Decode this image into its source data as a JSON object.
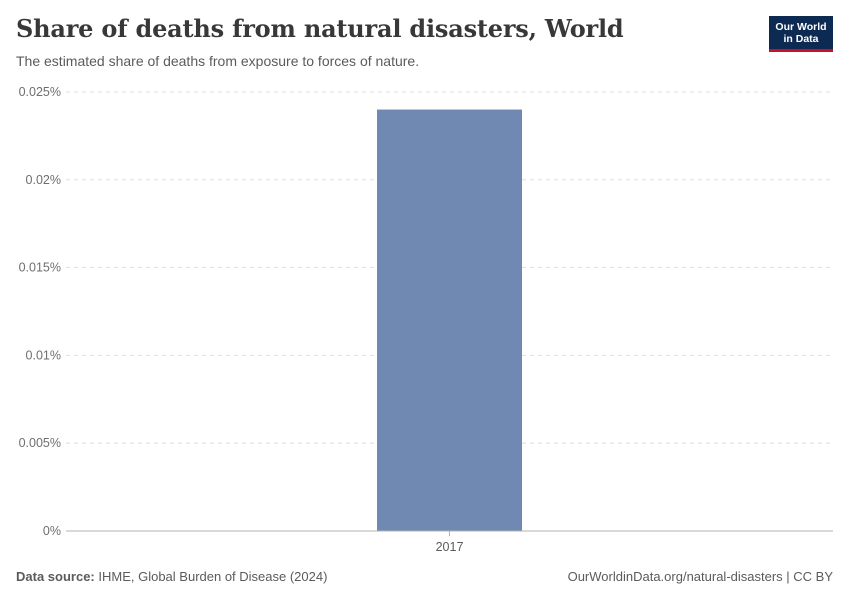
{
  "header": {
    "title": "Share of deaths from natural disasters, World",
    "subtitle": "The estimated share of deaths from exposure to forces of nature."
  },
  "logo": {
    "line1": "Our World",
    "line2": "in Data"
  },
  "chart_data": {
    "type": "bar",
    "title": "Share of deaths from natural disasters, World",
    "categories": [
      "2017"
    ],
    "values": [
      0.024
    ],
    "unit": "%",
    "ylim": [
      0,
      0.025
    ],
    "yticks": [
      0,
      0.005,
      0.01,
      0.015,
      0.02,
      0.025
    ],
    "ytick_labels": [
      "0%",
      "0.005%",
      "0.01%",
      "0.015%",
      "0.02%",
      "0.025%"
    ],
    "xlabel": "",
    "ylabel": "",
    "grid": true,
    "bar_color": "#6f89b2"
  },
  "footer": {
    "source_label": "Data source:",
    "source_text": "IHME, Global Burden of Disease (2024)",
    "url_text": "OurWorldinData.org/natural-disasters | CC BY"
  }
}
